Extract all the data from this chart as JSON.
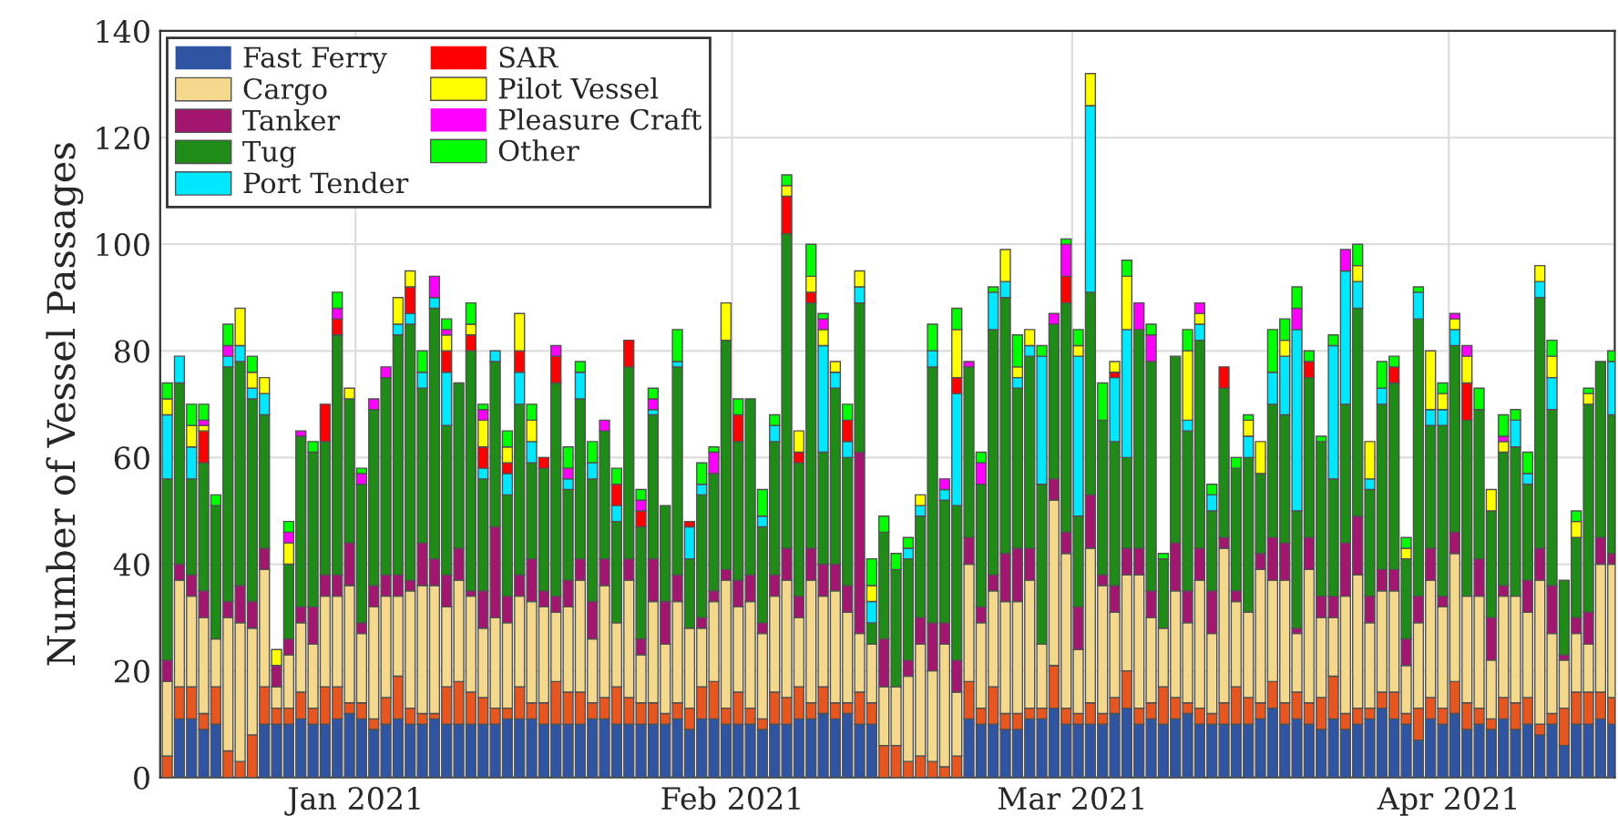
{
  "chart_data": {
    "type": "bar",
    "stacked": true,
    "ylabel": "Number of Vessel Passages",
    "x": [
      "2020-12-16T12:00",
      "2020-12-17T12:00",
      "2020-12-18T12:00",
      "2020-12-19T12:00",
      "2020-12-20T12:00",
      "2020-12-21T12:00",
      "2020-12-22T12:00",
      "2020-12-23T12:00",
      "2020-12-24T12:00",
      "2020-12-25T12:00",
      "2020-12-26T12:00",
      "2020-12-27T12:00",
      "2020-12-28T12:00",
      "2020-12-29T12:00",
      "2020-12-30T12:00",
      "2020-12-31T12:00",
      "2021-01-01T12:00",
      "2021-01-02T12:00",
      "2021-01-03T12:00",
      "2021-01-04T12:00",
      "2021-01-05T12:00",
      "2021-01-06T12:00",
      "2021-01-07T12:00",
      "2021-01-08T12:00",
      "2021-01-09T12:00",
      "2021-01-10T12:00",
      "2021-01-11T12:00",
      "2021-01-12T12:00",
      "2021-01-13T12:00",
      "2021-01-14T12:00",
      "2021-01-15T12:00",
      "2021-01-16T12:00",
      "2021-01-17T12:00",
      "2021-01-18T12:00",
      "2021-01-19T12:00",
      "2021-01-20T12:00",
      "2021-01-21T12:00",
      "2021-01-22T12:00",
      "2021-01-23T12:00",
      "2021-01-24T12:00",
      "2021-01-25T12:00",
      "2021-01-26T12:00",
      "2021-01-27T12:00",
      "2021-01-28T12:00",
      "2021-01-29T12:00",
      "2021-01-30T12:00",
      "2021-01-31T12:00",
      "2021-02-01T12:00",
      "2021-02-02T12:00",
      "2021-02-03T12:00",
      "2021-02-04T12:00",
      "2021-02-05T12:00",
      "2021-02-06T12:00",
      "2021-02-07T12:00",
      "2021-02-08T12:00",
      "2021-02-09T12:00",
      "2021-02-10T12:00",
      "2021-02-11T12:00",
      "2021-02-12T12:00",
      "2021-02-13T12:00",
      "2021-02-14T12:00",
      "2021-02-15T12:00",
      "2021-02-16T12:00",
      "2021-02-17T12:00",
      "2021-02-18T12:00",
      "2021-02-19T12:00",
      "2021-02-20T12:00",
      "2021-02-21T12:00",
      "2021-02-22T12:00",
      "2021-02-23T12:00",
      "2021-02-24T12:00",
      "2021-02-25T12:00",
      "2021-02-26T12:00",
      "2021-02-27T12:00",
      "2021-02-28T12:00",
      "2021-03-01T12:00",
      "2021-03-02T12:00",
      "2021-03-03T12:00",
      "2021-03-04T12:00",
      "2021-03-05T12:00",
      "2021-03-06T12:00",
      "2021-03-07T12:00",
      "2021-03-08T12:00",
      "2021-03-09T12:00",
      "2021-03-10T12:00",
      "2021-03-11T12:00",
      "2021-03-12T12:00",
      "2021-03-13T12:00",
      "2021-03-14T12:00",
      "2021-03-15T12:00",
      "2021-03-16T12:00",
      "2021-03-17T12:00",
      "2021-03-18T12:00",
      "2021-03-19T12:00",
      "2021-03-20T12:00",
      "2021-03-21T12:00",
      "2021-03-22T12:00",
      "2021-03-23T12:00",
      "2021-03-24T12:00",
      "2021-03-25T12:00",
      "2021-03-26T12:00",
      "2021-03-27T12:00",
      "2021-03-28T12:00",
      "2021-03-29T12:00",
      "2021-03-30T12:00",
      "2021-03-31T12:00",
      "2021-04-01T12:00",
      "2021-04-02T12:00",
      "2021-04-03T12:00",
      "2021-04-04T12:00",
      "2021-04-05T12:00",
      "2021-04-06T12:00",
      "2021-04-07T12:00",
      "2021-04-08T12:00",
      "2021-04-09T12:00",
      "2021-04-10T12:00",
      "2021-04-11T12:00",
      "2021-04-12T12:00",
      "2021-04-13T12:00",
      "2021-04-14T12:00"
    ],
    "series": [
      {
        "name": "Fast Ferry",
        "color": "#2f55a2",
        "values": [
          0,
          11,
          11,
          9,
          10,
          0,
          0,
          0,
          10,
          10,
          10,
          11,
          10,
          10,
          11,
          12,
          11,
          9,
          10,
          11,
          10,
          10,
          11,
          10,
          10,
          10,
          10,
          10,
          11,
          11,
          11,
          10,
          10,
          10,
          10,
          11,
          11,
          10,
          10,
          10,
          10,
          10,
          11,
          9,
          11,
          11,
          10,
          10,
          10,
          9,
          10,
          10,
          11,
          11,
          12,
          11,
          12,
          10,
          10,
          0,
          0,
          0,
          0,
          0,
          0,
          0,
          11,
          10,
          10,
          9,
          9,
          11,
          11,
          13,
          10,
          10,
          10,
          10,
          12,
          13,
          10,
          11,
          10,
          11,
          12,
          10,
          10,
          10,
          10,
          10,
          11,
          13,
          10,
          11,
          10,
          9,
          11,
          9,
          10,
          11,
          13,
          11,
          10,
          7,
          11,
          10,
          12,
          9,
          10,
          9,
          11,
          9,
          10,
          8,
          10,
          6,
          10,
          10,
          11,
          10
        ]
      },
      {
        "color": "#e6561e",
        "values": [
          4,
          6,
          6,
          3,
          7,
          5,
          3,
          8,
          7,
          3,
          3,
          5,
          3,
          7,
          6,
          2,
          3,
          2,
          5,
          8,
          3,
          2,
          1,
          7,
          8,
          6,
          5,
          3,
          2,
          6,
          3,
          4,
          8,
          6,
          6,
          3,
          4,
          7,
          5,
          4,
          4,
          2,
          3,
          4,
          6,
          7,
          3,
          6,
          3,
          2,
          6,
          5,
          6,
          3,
          5,
          3,
          2,
          6,
          4,
          6,
          6,
          3,
          4,
          3,
          2,
          4,
          7,
          3,
          7,
          3,
          3,
          2,
          2,
          8,
          3,
          2,
          4,
          2,
          3,
          7,
          3,
          3,
          7,
          4,
          2,
          3,
          2,
          4,
          7,
          5,
          3,
          5,
          4,
          5,
          4,
          6,
          8,
          3,
          3,
          2,
          3,
          5,
          2,
          6,
          4,
          3,
          6,
          5,
          3,
          2,
          4,
          5,
          5,
          2,
          2,
          7,
          6,
          6,
          5,
          5
        ]
      },
      {
        "name": "Cargo",
        "color": "#f4d98c",
        "values": [
          14,
          20,
          17,
          18,
          9,
          25,
          26,
          20,
          22,
          4,
          10,
          13,
          12,
          17,
          17,
          22,
          13,
          21,
          19,
          15,
          22,
          24,
          24,
          15,
          19,
          18,
          13,
          17,
          16,
          17,
          19,
          18,
          13,
          16,
          21,
          12,
          21,
          12,
          22,
          9,
          19,
          13,
          19,
          15,
          11,
          15,
          24,
          16,
          20,
          16,
          18,
          22,
          13,
          23,
          17,
          21,
          17,
          11,
          11,
          11,
          11,
          16,
          21,
          17,
          23,
          12,
          22,
          16,
          18,
          21,
          21,
          24,
          12,
          31,
          29,
          12,
          29,
          24,
          16,
          18,
          25,
          16,
          11,
          20,
          15,
          24,
          15,
          29,
          16,
          16,
          25,
          19,
          23,
          11,
          25,
          15,
          11,
          22,
          25,
          16,
          19,
          19,
          9,
          16,
          22,
          19,
          24,
          20,
          21,
          11,
          19,
          20,
          16,
          27,
          15,
          9,
          11,
          9,
          24,
          25
        ]
      },
      {
        "name": "Tanker",
        "color": "#a2166f",
        "values": [
          4,
          3,
          4,
          5,
          0,
          3,
          7,
          5,
          4,
          4,
          3,
          3,
          7,
          4,
          4,
          8,
          2,
          4,
          4,
          4,
          2,
          8,
          5,
          6,
          6,
          1,
          7,
          17,
          5,
          4,
          8,
          3,
          3,
          5,
          4,
          7,
          5,
          0,
          4,
          3,
          8,
          8,
          5,
          0,
          2,
          2,
          2,
          5,
          5,
          2,
          4,
          6,
          4,
          6,
          6,
          5,
          5,
          34,
          0,
          9,
          0,
          3,
          5,
          9,
          4,
          6,
          5,
          3,
          3,
          9,
          10,
          6,
          0,
          4,
          4,
          8,
          10,
          2,
          5,
          5,
          5,
          5,
          0,
          9,
          6,
          6,
          8,
          2,
          2,
          0,
          3,
          8,
          7,
          1,
          6,
          4,
          4,
          10,
          11,
          5,
          4,
          4,
          5,
          5,
          6,
          2,
          4,
          0,
          7,
          8,
          2,
          0,
          6,
          6,
          9,
          1,
          3,
          6,
          5,
          2
        ]
      },
      {
        "name": "Tug",
        "color": "#1e8c17",
        "values": [
          34,
          34,
          18,
          24,
          25,
          44,
          42,
          38,
          25,
          0,
          14,
          32,
          29,
          25,
          45,
          27,
          26,
          33,
          37,
          45,
          48,
          29,
          47,
          28,
          31,
          45,
          21,
          31,
          19,
          32,
          18,
          23,
          40,
          17,
          30,
          23,
          24,
          19,
          36,
          21,
          27,
          18,
          39,
          13,
          23,
          22,
          43,
          26,
          33,
          18,
          25,
          59,
          25,
          46,
          21,
          33,
          24,
          28,
          4,
          20,
          22,
          19,
          19,
          48,
          23,
          29,
          32,
          23,
          46,
          48,
          30,
          36,
          30,
          29,
          43,
          17,
          38,
          29,
          27,
          17,
          41,
          43,
          13,
          35,
          30,
          39,
          15,
          28,
          23,
          29,
          15,
          25,
          24,
          22,
          30,
          29,
          22,
          26,
          39,
          20,
          31,
          35,
          15,
          52,
          23,
          32,
          35,
          33,
          28,
          20,
          25,
          28,
          18,
          47,
          33,
          14,
          15,
          39,
          33,
          26
        ]
      },
      {
        "name": "Port Tender",
        "color": "#00e8ff",
        "values": [
          12,
          5,
          6,
          0,
          0,
          2,
          3,
          2,
          4,
          0,
          0,
          0,
          0,
          0,
          0,
          0,
          0,
          0,
          0,
          2,
          2,
          3,
          2,
          10,
          0,
          0,
          2,
          2,
          4,
          6,
          4,
          0,
          0,
          2,
          5,
          3,
          0,
          3,
          0,
          0,
          1,
          0,
          1,
          6,
          2,
          0,
          0,
          0,
          0,
          2,
          3,
          0,
          0,
          0,
          20,
          3,
          3,
          3,
          4,
          0,
          0,
          2,
          2,
          3,
          2,
          21,
          0,
          0,
          7,
          3,
          2,
          2,
          24,
          0,
          0,
          30,
          35,
          0,
          12,
          24,
          0,
          0,
          0,
          0,
          2,
          3,
          3,
          0,
          0,
          4,
          0,
          6,
          11,
          34,
          0,
          0,
          25,
          25,
          5,
          2,
          3,
          0,
          0,
          5,
          3,
          3,
          3,
          0,
          0,
          0,
          0,
          5,
          2,
          3,
          6,
          0,
          0,
          0,
          0,
          10
        ]
      },
      {
        "name": "SAR",
        "color": "#ff0000",
        "values": [
          0,
          0,
          0,
          6,
          0,
          0,
          0,
          0,
          0,
          0,
          0,
          0,
          0,
          7,
          3,
          0,
          0,
          0,
          0,
          0,
          5,
          0,
          0,
          4,
          0,
          3,
          4,
          0,
          2,
          4,
          0,
          2,
          5,
          0,
          0,
          0,
          0,
          4,
          5,
          3,
          0,
          0,
          0,
          1,
          0,
          0,
          0,
          5,
          0,
          0,
          0,
          7,
          2,
          2,
          0,
          0,
          4,
          0,
          0,
          0,
          0,
          0,
          0,
          0,
          0,
          3,
          0,
          0,
          0,
          0,
          0,
          0,
          0,
          0,
          5,
          0,
          0,
          0,
          1,
          0,
          0,
          0,
          0,
          0,
          0,
          0,
          0,
          4,
          0,
          0,
          0,
          0,
          0,
          0,
          3,
          0,
          0,
          0,
          0,
          0,
          0,
          3,
          0,
          0,
          0,
          0,
          0,
          7,
          0,
          0,
          0,
          0,
          0,
          0,
          0,
          0,
          0,
          0,
          0,
          0
        ]
      },
      {
        "name": "Pilot Vessel",
        "color": "#ffff00",
        "values": [
          3,
          0,
          4,
          1,
          0,
          0,
          7,
          3,
          3,
          3,
          4,
          0,
          0,
          0,
          0,
          2,
          0,
          0,
          0,
          5,
          3,
          0,
          0,
          3,
          0,
          2,
          5,
          0,
          3,
          7,
          4,
          0,
          0,
          0,
          0,
          0,
          0,
          0,
          0,
          0,
          0,
          0,
          0,
          0,
          0,
          0,
          7,
          0,
          0,
          0,
          0,
          2,
          4,
          3,
          3,
          2,
          0,
          3,
          3,
          0,
          0,
          0,
          2,
          0,
          0,
          9,
          0,
          0,
          0,
          6,
          2,
          3,
          0,
          0,
          0,
          2,
          6,
          0,
          2,
          10,
          0,
          0,
          0,
          0,
          13,
          2,
          0,
          0,
          0,
          3,
          6,
          0,
          3,
          0,
          0,
          0,
          0,
          0,
          3,
          7,
          0,
          0,
          2,
          0,
          11,
          3,
          2,
          5,
          0,
          4,
          2,
          0,
          0,
          3,
          4,
          0,
          3,
          2,
          0,
          0
        ]
      },
      {
        "name": "Pleasure Craft",
        "color": "#ff00ff",
        "values": [
          0,
          0,
          0,
          1,
          0,
          2,
          0,
          0,
          0,
          0,
          2,
          1,
          0,
          0,
          2,
          0,
          2,
          2,
          2,
          0,
          0,
          0,
          4,
          1,
          0,
          0,
          2,
          0,
          0,
          0,
          0,
          0,
          2,
          2,
          0,
          0,
          2,
          0,
          0,
          2,
          2,
          0,
          0,
          0,
          0,
          4,
          0,
          0,
          0,
          0,
          0,
          0,
          0,
          0,
          2,
          0,
          0,
          0,
          0,
          0,
          0,
          0,
          0,
          0,
          2,
          0,
          1,
          4,
          0,
          0,
          0,
          0,
          0,
          2,
          6,
          0,
          0,
          0,
          0,
          0,
          5,
          5,
          0,
          0,
          0,
          2,
          0,
          0,
          0,
          0,
          0,
          0,
          0,
          4,
          0,
          0,
          0,
          4,
          0,
          0,
          0,
          0,
          0,
          0,
          0,
          0,
          1,
          2,
          0,
          0,
          1,
          0,
          0,
          0,
          0,
          0,
          0,
          0,
          0,
          0
        ]
      },
      {
        "name": "Other",
        "color": "#00ff00",
        "values": [
          3,
          0,
          4,
          3,
          2,
          4,
          0,
          3,
          0,
          0,
          2,
          0,
          2,
          0,
          3,
          0,
          1,
          0,
          0,
          0,
          0,
          4,
          0,
          2,
          0,
          4,
          1,
          0,
          3,
          0,
          3,
          0,
          0,
          4,
          2,
          4,
          0,
          3,
          0,
          2,
          2,
          0,
          6,
          0,
          4,
          1,
          0,
          3,
          0,
          5,
          2,
          2,
          0,
          6,
          1,
          0,
          3,
          0,
          5,
          3,
          3,
          2,
          0,
          5,
          0,
          4,
          0,
          2,
          1,
          0,
          6,
          0,
          2,
          0,
          1,
          3,
          0,
          7,
          0,
          3,
          0,
          2,
          1,
          0,
          4,
          0,
          2,
          0,
          2,
          1,
          0,
          8,
          4,
          4,
          2,
          1,
          2,
          0,
          4,
          0,
          5,
          2,
          2,
          1,
          0,
          2,
          0,
          0,
          4,
          0,
          4,
          2,
          4,
          0,
          3,
          0,
          2,
          1,
          0,
          2
        ]
      }
    ],
    "xlim": [
      "2020-12-15T22:00",
      "2021-04-14T16:00"
    ],
    "xticks": [
      {
        "value": "2021-01-01",
        "label": "Jan 2021"
      },
      {
        "value": "2021-02-01",
        "label": "Feb 2021"
      },
      {
        "value": "2021-03-01",
        "label": "Mar 2021"
      },
      {
        "value": "2021-04-01",
        "label": "Apr 2021"
      }
    ],
    "ylim": [
      0,
      140
    ],
    "yticks": [
      0,
      20,
      40,
      60,
      80,
      100,
      120,
      140
    ],
    "grid": true,
    "legend": "top left"
  }
}
